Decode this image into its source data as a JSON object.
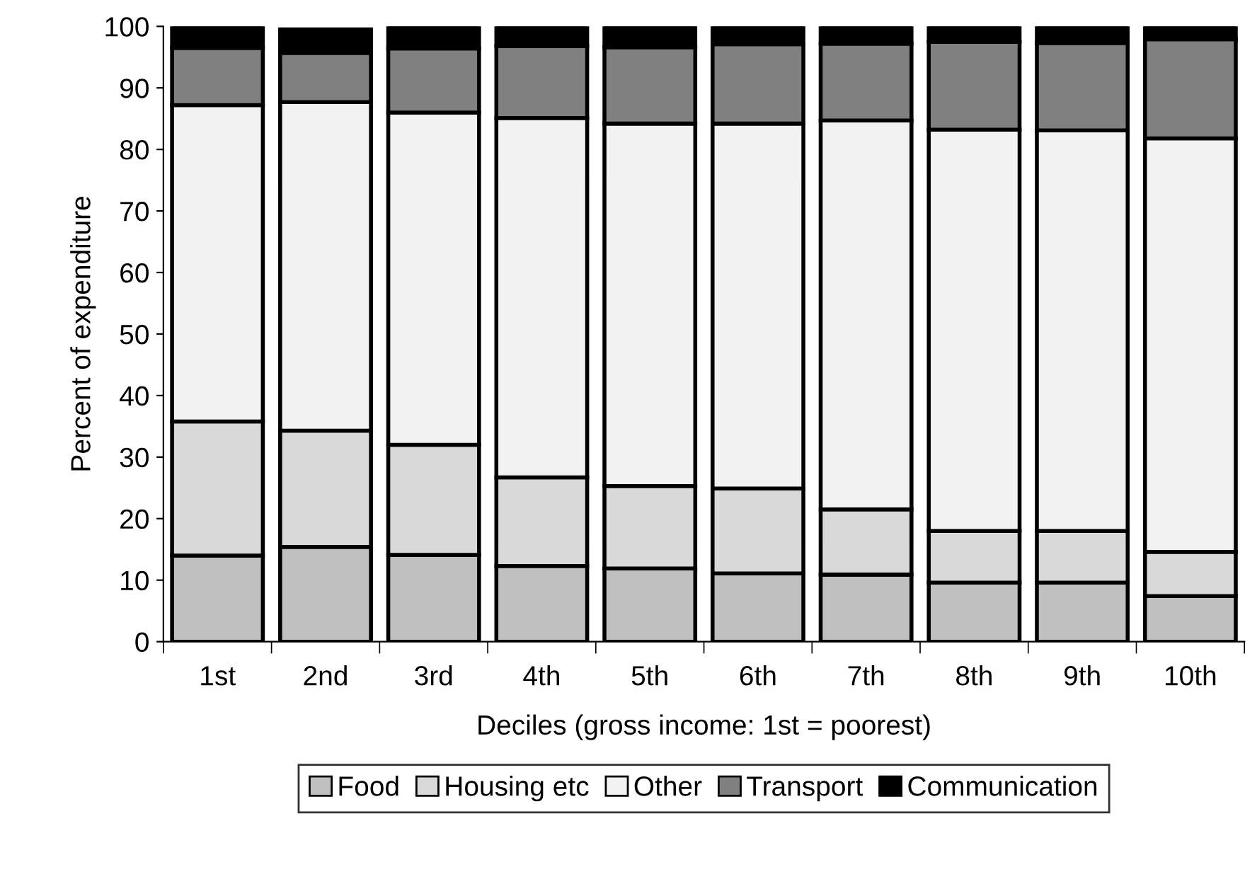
{
  "chart_data": {
    "type": "bar",
    "stacked": true,
    "xlabel": "Deciles (gross income: 1st = poorest)",
    "ylabel": "Percent of expenditure",
    "categories": [
      "1st",
      "2nd",
      "3rd",
      "4th",
      "5th",
      "6th",
      "7th",
      "8th",
      "9th",
      "10th"
    ],
    "series": [
      {
        "name": "Food",
        "color": "#c0c0c0",
        "values": [
          14,
          15.4,
          14.1,
          12.3,
          11.9,
          11.1,
          10.9,
          9.6,
          9.6,
          7.4
        ]
      },
      {
        "name": "Housing etc",
        "color": "#d9d9d9",
        "values": [
          21.8,
          18.9,
          17.9,
          14.4,
          13.4,
          13.8,
          10.6,
          8.4,
          8.4,
          7.2
        ]
      },
      {
        "name": "Other",
        "color": "#f2f2f2",
        "values": [
          51.4,
          53.4,
          54,
          58.4,
          58.9,
          59.3,
          63.2,
          65.2,
          65.1,
          67.2
        ]
      },
      {
        "name": "Transport",
        "color": "#808080",
        "values": [
          9.3,
          8,
          10.4,
          11.7,
          12.4,
          12.9,
          12.5,
          14.3,
          14.2,
          16.1
        ]
      },
      {
        "name": "Communication",
        "color": "#000000",
        "values": [
          3.5,
          3.8,
          3.6,
          3.2,
          3.4,
          2.9,
          2.8,
          2.5,
          2.7,
          2.1
        ]
      }
    ],
    "ylim": [
      0,
      100
    ],
    "yticks": [
      0,
      10,
      20,
      30,
      40,
      50,
      60,
      70,
      80,
      90,
      100
    ],
    "grid": false,
    "legend": "bottom"
  }
}
